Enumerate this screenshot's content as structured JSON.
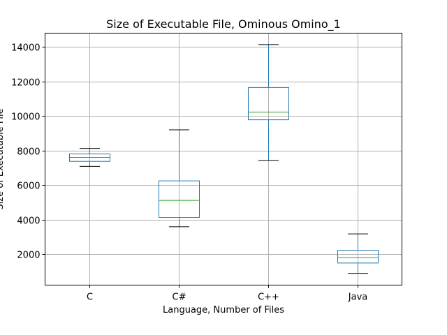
{
  "chart_data": {
    "type": "box",
    "title": "Size of Executable File, Ominous Omino_1",
    "xlabel": "Language, Number of Files",
    "ylabel": "Size of Executable File",
    "categories": [
      "C",
      "C#",
      "C++",
      "Java"
    ],
    "boxes": [
      {
        "category": "C",
        "whisker_low": 7080,
        "q1": 7370,
        "median": 7600,
        "q3": 7800,
        "whisker_high": 8120
      },
      {
        "category": "C#",
        "whisker_low": 3580,
        "q1": 4120,
        "median": 5110,
        "q3": 6240,
        "whisker_high": 9200
      },
      {
        "category": "C++",
        "whisker_low": 7430,
        "q1": 9780,
        "median": 10220,
        "q3": 11650,
        "whisker_high": 14140
      },
      {
        "category": "Java",
        "whisker_low": 880,
        "q1": 1480,
        "median": 1800,
        "q3": 2220,
        "whisker_high": 3170
      }
    ],
    "yticks": [
      2000,
      4000,
      6000,
      8000,
      10000,
      12000,
      14000
    ],
    "ylim": [
      200,
      14800
    ],
    "grid": true,
    "colors": {
      "box": "#1f77b4",
      "median": "#2ca02c",
      "whisker_cap": "#000000",
      "grid": "#b0b0b0"
    }
  }
}
